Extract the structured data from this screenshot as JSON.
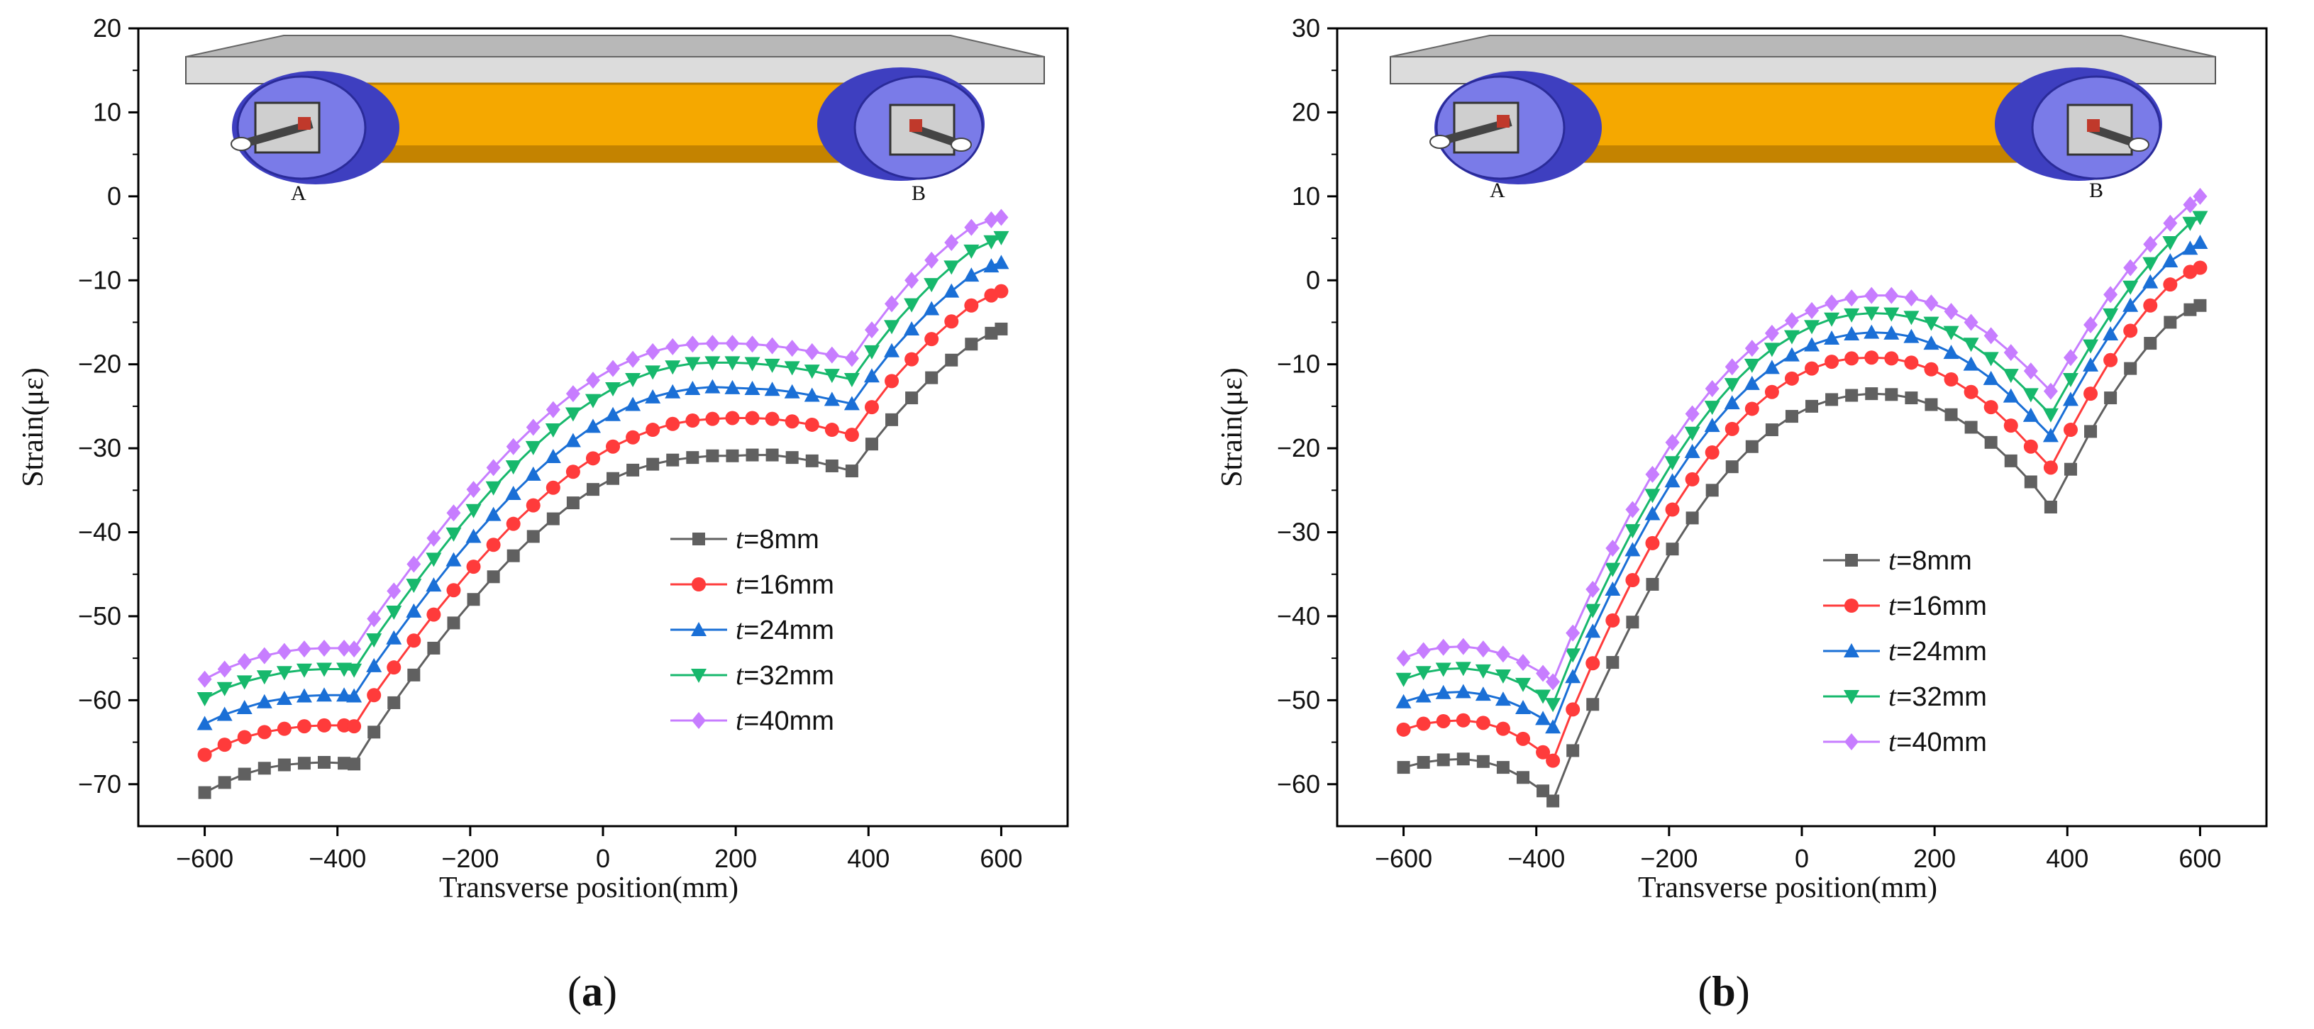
{
  "figure": {
    "panel_labels": [
      {
        "open": "(",
        "letter": "a",
        "close": ")"
      },
      {
        "open": "(",
        "letter": "b",
        "close": ")"
      }
    ],
    "illustration": {
      "support_left": "A",
      "support_right": "B"
    },
    "colors": {
      "series": [
        "#606060",
        "#ff3b3b",
        "#1a6fd6",
        "#17b86c",
        "#c77dff"
      ],
      "beam_top": "#d9d9d9",
      "beam_body": "#f5a800",
      "wheel": "#3e3fc0",
      "wheel_inner": "#7a7be8"
    }
  },
  "chart_data": [
    {
      "type": "line",
      "title": "",
      "xlabel": "Transverse position(mm)",
      "ylabel": "Strain(με)",
      "xlim": [
        -700,
        700
      ],
      "ylim": [
        -75,
        20
      ],
      "xticks": [
        -600,
        -400,
        -200,
        0,
        200,
        400,
        600
      ],
      "yticks": [
        20,
        10,
        0,
        -10,
        -20,
        -30,
        -40,
        -50,
        -60,
        -70
      ],
      "xtick_labels": [
        "−600",
        "−400",
        "−200",
        "0",
        "200",
        "400",
        "600"
      ],
      "ytick_labels": [
        "20",
        "10",
        "0",
        "−10",
        "−20",
        "−30",
        "−40",
        "−50",
        "−60",
        "−70"
      ],
      "legend_position": "center-right",
      "x": [
        -600,
        -570,
        -540,
        -510,
        -480,
        -450,
        -420,
        -390,
        -375,
        -345,
        -315,
        -285,
        -255,
        -225,
        -195,
        -165,
        -135,
        -105,
        -75,
        -45,
        -15,
        15,
        45,
        75,
        105,
        135,
        165,
        195,
        225,
        255,
        285,
        315,
        345,
        375,
        405,
        435,
        465,
        495,
        525,
        555,
        585,
        600
      ],
      "series": [
        {
          "name": "t=8mm",
          "name_var": "t",
          "name_rest": "=8mm",
          "marker": "square",
          "values": [
            -71.0,
            -69.8,
            -68.8,
            -68.1,
            -67.7,
            -67.5,
            -67.4,
            -67.5,
            -67.6,
            -63.8,
            -60.3,
            -57.0,
            -53.8,
            -50.8,
            -48.0,
            -45.3,
            -42.8,
            -40.5,
            -38.4,
            -36.5,
            -34.9,
            -33.6,
            -32.6,
            -31.9,
            -31.4,
            -31.1,
            -30.9,
            -30.9,
            -30.8,
            -30.8,
            -31.1,
            -31.5,
            -32.1,
            -32.7,
            -29.5,
            -26.6,
            -24.0,
            -21.6,
            -19.5,
            -17.6,
            -16.3,
            -15.8
          ]
        },
        {
          "name": "t=16mm",
          "name_var": "t",
          "name_rest": "=16mm",
          "marker": "circle",
          "values": [
            -66.5,
            -65.3,
            -64.4,
            -63.8,
            -63.4,
            -63.1,
            -63.0,
            -63.0,
            -63.1,
            -59.4,
            -56.1,
            -52.9,
            -49.8,
            -46.9,
            -44.1,
            -41.5,
            -39.0,
            -36.8,
            -34.7,
            -32.8,
            -31.2,
            -29.8,
            -28.7,
            -27.8,
            -27.1,
            -26.7,
            -26.5,
            -26.4,
            -26.4,
            -26.5,
            -26.8,
            -27.2,
            -27.8,
            -28.4,
            -25.1,
            -22.0,
            -19.4,
            -17.0,
            -14.9,
            -13.0,
            -11.8,
            -11.3
          ]
        },
        {
          "name": "t=24mm",
          "name_var": "t",
          "name_rest": "=24mm",
          "marker": "triangle-up",
          "values": [
            -62.8,
            -61.7,
            -60.9,
            -60.2,
            -59.8,
            -59.5,
            -59.4,
            -59.4,
            -59.5,
            -55.9,
            -52.6,
            -49.4,
            -46.3,
            -43.3,
            -40.5,
            -37.9,
            -35.4,
            -33.1,
            -31.0,
            -29.1,
            -27.4,
            -26.0,
            -24.8,
            -23.9,
            -23.3,
            -22.9,
            -22.7,
            -22.8,
            -22.9,
            -23.0,
            -23.3,
            -23.7,
            -24.2,
            -24.7,
            -21.4,
            -18.4,
            -15.8,
            -13.4,
            -11.3,
            -9.4,
            -8.3,
            -7.9
          ]
        },
        {
          "name": "t=32mm",
          "name_var": "t",
          "name_rest": "=32mm",
          "marker": "triangle-down",
          "values": [
            -59.8,
            -58.6,
            -57.8,
            -57.2,
            -56.7,
            -56.4,
            -56.3,
            -56.3,
            -56.4,
            -52.8,
            -49.5,
            -46.3,
            -43.2,
            -40.2,
            -37.4,
            -34.7,
            -32.2,
            -29.9,
            -27.8,
            -25.9,
            -24.3,
            -22.9,
            -21.8,
            -20.9,
            -20.3,
            -19.9,
            -19.8,
            -19.8,
            -19.9,
            -20.1,
            -20.4,
            -20.8,
            -21.3,
            -21.8,
            -18.5,
            -15.5,
            -12.9,
            -10.5,
            -8.4,
            -6.5,
            -5.4,
            -4.9
          ]
        },
        {
          "name": "t=40mm",
          "name_var": "t",
          "name_rest": "=40mm",
          "marker": "diamond",
          "values": [
            -57.5,
            -56.3,
            -55.4,
            -54.7,
            -54.2,
            -53.9,
            -53.8,
            -53.8,
            -53.9,
            -50.3,
            -47.0,
            -43.8,
            -40.7,
            -37.7,
            -34.9,
            -32.3,
            -29.8,
            -27.5,
            -25.4,
            -23.5,
            -21.9,
            -20.5,
            -19.4,
            -18.5,
            -17.9,
            -17.6,
            -17.5,
            -17.5,
            -17.6,
            -17.8,
            -18.1,
            -18.5,
            -18.9,
            -19.3,
            -15.9,
            -12.8,
            -10.0,
            -7.6,
            -5.5,
            -3.7,
            -2.8,
            -2.5
          ]
        }
      ]
    },
    {
      "type": "line",
      "title": "",
      "xlabel": "Transverse position(mm)",
      "ylabel": "Strain(με)",
      "xlim": [
        -700,
        700
      ],
      "ylim": [
        -65,
        30
      ],
      "xticks": [
        -600,
        -400,
        -200,
        0,
        200,
        400,
        600
      ],
      "yticks": [
        30,
        20,
        10,
        0,
        -10,
        -20,
        -30,
        -40,
        -50,
        -60
      ],
      "xtick_labels": [
        "−600",
        "−400",
        "−200",
        "0",
        "200",
        "400",
        "600"
      ],
      "ytick_labels": [
        "30",
        "20",
        "10",
        "0",
        "−10",
        "−20",
        "−30",
        "−40",
        "−50",
        "−60"
      ],
      "legend_position": "center-right",
      "x": [
        -600,
        -570,
        -540,
        -510,
        -480,
        -450,
        -420,
        -390,
        -375,
        -345,
        -315,
        -285,
        -255,
        -225,
        -195,
        -165,
        -135,
        -105,
        -75,
        -45,
        -15,
        15,
        45,
        75,
        105,
        135,
        165,
        195,
        225,
        255,
        285,
        315,
        345,
        375,
        405,
        435,
        465,
        495,
        525,
        555,
        585,
        600
      ],
      "series": [
        {
          "name": "t=8mm",
          "name_var": "t",
          "name_rest": "=8mm",
          "marker": "square",
          "values": [
            -58.0,
            -57.4,
            -57.1,
            -57.0,
            -57.3,
            -58.0,
            -59.2,
            -60.8,
            -62.0,
            -56.0,
            -50.5,
            -45.5,
            -40.7,
            -36.2,
            -32.0,
            -28.3,
            -25.0,
            -22.2,
            -19.8,
            -17.8,
            -16.2,
            -15.0,
            -14.2,
            -13.7,
            -13.5,
            -13.6,
            -14.0,
            -14.8,
            -16.0,
            -17.5,
            -19.3,
            -21.5,
            -24.0,
            -27.0,
            -22.5,
            -18.0,
            -14.0,
            -10.5,
            -7.5,
            -5.0,
            -3.5,
            -3.0
          ]
        },
        {
          "name": "t=16mm",
          "name_var": "t",
          "name_rest": "=16mm",
          "marker": "circle",
          "values": [
            -53.5,
            -52.8,
            -52.5,
            -52.4,
            -52.7,
            -53.4,
            -54.6,
            -56.2,
            -57.2,
            -51.1,
            -45.6,
            -40.5,
            -35.7,
            -31.3,
            -27.3,
            -23.7,
            -20.5,
            -17.7,
            -15.3,
            -13.3,
            -11.7,
            -10.5,
            -9.7,
            -9.3,
            -9.2,
            -9.3,
            -9.8,
            -10.6,
            -11.8,
            -13.3,
            -15.1,
            -17.3,
            -19.8,
            -22.3,
            -17.8,
            -13.5,
            -9.5,
            -6.0,
            -3.0,
            -0.5,
            1.0,
            1.5
          ]
        },
        {
          "name": "t=24mm",
          "name_var": "t",
          "name_rest": "=24mm",
          "marker": "triangle-up",
          "values": [
            -50.2,
            -49.5,
            -49.1,
            -49.0,
            -49.3,
            -49.9,
            -50.9,
            -52.2,
            -53.2,
            -47.2,
            -41.8,
            -36.8,
            -32.1,
            -27.8,
            -23.9,
            -20.4,
            -17.3,
            -14.6,
            -12.3,
            -10.4,
            -8.9,
            -7.7,
            -6.9,
            -6.4,
            -6.2,
            -6.3,
            -6.7,
            -7.5,
            -8.6,
            -10.0,
            -11.7,
            -13.8,
            -16.1,
            -18.5,
            -14.2,
            -10.1,
            -6.4,
            -3.0,
            -0.2,
            2.3,
            3.8,
            4.5
          ]
        },
        {
          "name": "t=32mm",
          "name_var": "t",
          "name_rest": "=32mm",
          "marker": "triangle-down",
          "values": [
            -47.5,
            -46.7,
            -46.3,
            -46.2,
            -46.5,
            -47.1,
            -48.1,
            -49.5,
            -50.5,
            -44.6,
            -39.3,
            -34.4,
            -29.8,
            -25.6,
            -21.7,
            -18.2,
            -15.1,
            -12.4,
            -10.1,
            -8.2,
            -6.7,
            -5.5,
            -4.6,
            -4.1,
            -3.9,
            -4.0,
            -4.4,
            -5.1,
            -6.2,
            -7.6,
            -9.3,
            -11.3,
            -13.6,
            -16.0,
            -11.8,
            -7.8,
            -4.1,
            -0.8,
            2.0,
            4.5,
            6.8,
            7.5
          ]
        },
        {
          "name": "t=40mm",
          "name_var": "t",
          "name_rest": "=40mm",
          "marker": "diamond",
          "values": [
            -45.0,
            -44.1,
            -43.7,
            -43.6,
            -43.9,
            -44.5,
            -45.5,
            -46.8,
            -47.8,
            -42.0,
            -36.8,
            -31.9,
            -27.3,
            -23.1,
            -19.3,
            -15.9,
            -12.9,
            -10.3,
            -8.1,
            -6.3,
            -4.8,
            -3.6,
            -2.7,
            -2.1,
            -1.8,
            -1.8,
            -2.1,
            -2.7,
            -3.7,
            -5.0,
            -6.6,
            -8.6,
            -10.8,
            -13.2,
            -9.2,
            -5.3,
            -1.7,
            1.5,
            4.3,
            6.8,
            9.0,
            10.0
          ]
        }
      ]
    }
  ]
}
